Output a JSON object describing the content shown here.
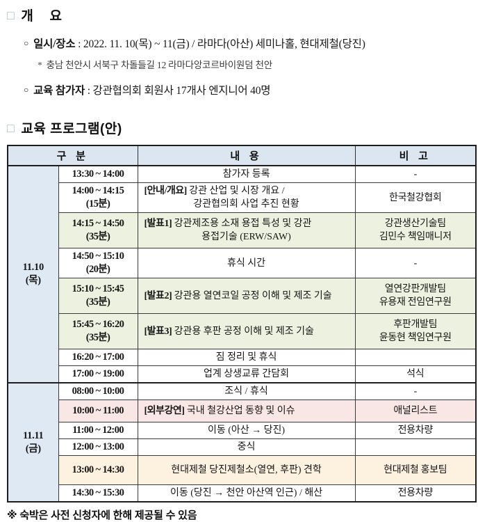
{
  "overview": {
    "marker": "□",
    "title": "개    요",
    "items": [
      {
        "bullet": "○",
        "label": "일시/장소",
        "sep": " : ",
        "text": "2022. 11. 10(목) ~ 11(금) / 라마다(아산) 세미나홀, 현대제철(당진)"
      },
      {
        "bullet": "○",
        "label": "교육 참가자",
        "sep": " : ",
        "text": "강관협의회 회원사 17개사 엔지니어 40명"
      }
    ],
    "subnote_marker": "*",
    "subnote": "충남 천안시 서북구 차돌들길 12 라마다앙코르바이원덤 천안"
  },
  "program": {
    "marker": "□",
    "title": "교육 프로그램(안)",
    "table": {
      "headers": [
        "구 분",
        "내 용",
        "비 고"
      ],
      "groups": [
        {
          "lines": [
            "11.10",
            "(목)"
          ],
          "span": 8
        },
        {
          "lines": [
            "11.11",
            "(금)"
          ],
          "span": 6
        }
      ],
      "rows": [
        {
          "time": "13:30 ~ 14:00",
          "dur": "",
          "tag": "",
          "content": [
            "참가자 등록"
          ],
          "align": "center",
          "note": [
            "-"
          ],
          "bg": "#ffffff",
          "group_start": true,
          "group": 0
        },
        {
          "time": "14:00 ~ 14:15",
          "dur": "(15분)",
          "tag": "[안내/개요]",
          "content": [
            "강관 산업 및 시장 개요 /",
            "강관협의회 사업 추진 현황"
          ],
          "align": "left",
          "note": [
            "한국철강협회"
          ],
          "bg": "#ffffff"
        },
        {
          "time": "14:15 ~ 14:50",
          "dur": "(35분)",
          "tag": "[발표1]",
          "content": [
            "강관제조용 소재 용접 특성 및 강관",
            "용접기술 (ERW/SAW)"
          ],
          "align": "left",
          "note": [
            "강관생산기술팀",
            "김민수 책임매니저"
          ],
          "bg": "#edf1df"
        },
        {
          "time": "14:50 ~ 15:10",
          "dur": "(20분)",
          "tag": "",
          "content": [
            "휴식 시간"
          ],
          "align": "center",
          "note": [
            "-"
          ],
          "bg": "#ffffff"
        },
        {
          "time": "15:10 ~ 15:45",
          "dur": "(35분)",
          "tag": "[발표2]",
          "content": [
            "강관용 열연코일 공정 이해 및 제조 기술"
          ],
          "align": "left",
          "note": [
            "열연강판개발팀",
            "유용재 전임연구원"
          ],
          "bg": "#edf1df"
        },
        {
          "time": "15:45 ~ 16:20",
          "dur": "(35분)",
          "tag": "[발표3]",
          "content": [
            "강관용 후판 공정 이해 및 제조 기술"
          ],
          "align": "left",
          "note": [
            "후판개발팀",
            "윤동현 책임연구원"
          ],
          "bg": "#edf1df"
        },
        {
          "time": "16:20 ~ 17:00",
          "dur": "",
          "tag": "",
          "content": [
            "짐 정리 및 휴식"
          ],
          "align": "center",
          "note": [
            ""
          ],
          "bg": "#ffffff"
        },
        {
          "time": "17:00 ~ 19:00",
          "dur": "",
          "tag": "",
          "content": [
            "업계 상생교류 간담회"
          ],
          "align": "center",
          "note": [
            "석식"
          ],
          "bg": "#ffffff"
        },
        {
          "time": "08:00 ~ 10:00",
          "dur": "",
          "tag": "",
          "content": [
            "조식 / 휴식"
          ],
          "align": "center",
          "note": [
            "-"
          ],
          "bg": "#ffffff",
          "group_start": true,
          "group": 1
        },
        {
          "time": "10:00 ~ 11:00",
          "dur": "",
          "tag": "[외부강연]",
          "content": [
            "국내 철강산업 동향 및 이슈"
          ],
          "align": "left",
          "note": [
            "애널리스트"
          ],
          "bg": "#f9e7e5"
        },
        {
          "time": "11:00 ~ 12:00",
          "dur": "",
          "tag": "",
          "content": [
            "이동 (아산 → 당진)"
          ],
          "align": "center",
          "note": [
            "전용차량"
          ],
          "bg": "#ffffff"
        },
        {
          "time": "12:00 ~ 13:00",
          "dur": "",
          "tag": "",
          "content": [
            "중식"
          ],
          "align": "center",
          "note": [
            ""
          ],
          "bg": "#ffffff"
        },
        {
          "time": "13:00 ~ 14:30",
          "dur": "",
          "tag": "",
          "content": [
            "현대제철 당진제철소(열연, 후판) 견학"
          ],
          "align": "center",
          "note": [
            "현대제철 홍보팀"
          ],
          "bg": "#fdf1df"
        },
        {
          "time": "14:30 ~ 15:30",
          "dur": "",
          "tag": "",
          "content": [
            "이동 (당진 → 천안 아산역 인근) / 해산"
          ],
          "align": "center",
          "note": [
            "전용차량"
          ],
          "bg": "#ffffff"
        }
      ]
    }
  },
  "footer": {
    "note": "※ 숙박은 사전 신청자에 한해 제공될 수 있음"
  },
  "colors": {
    "header_bg": "#dce6f1",
    "group_bg": "#dfe9f4",
    "presentation_row_bg": "#edf1df",
    "lecture_row_bg": "#f9e7e5",
    "tour_row_bg": "#fdf1df",
    "row_default_bg": "#ffffff",
    "border": "#1d1d1d"
  }
}
